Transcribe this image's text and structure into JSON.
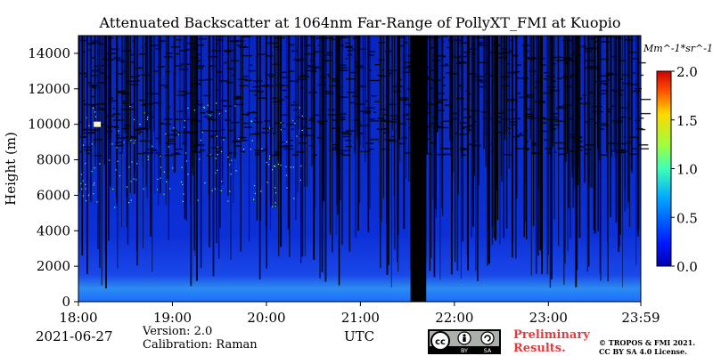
{
  "chart_data": {
    "type": "heatmap",
    "title": "Attenuated Backscatter at 1064nm Far-Range of PollyXT_FMI at Kuopio",
    "ylabel": "Height (m)",
    "xlabel": "UTC",
    "x_ticks": [
      "18:00",
      "19:00",
      "20:00",
      "21:00",
      "22:00",
      "23:00",
      "23:59"
    ],
    "y_ticks": [
      0,
      2000,
      4000,
      6000,
      8000,
      10000,
      12000,
      14000
    ],
    "ylim": [
      0,
      15000
    ],
    "colorbar": {
      "label": "Mm^-1*sr^-1",
      "ticks": [
        "0.0",
        "0.5",
        "1.0",
        "1.5",
        "2.0"
      ],
      "range": [
        0,
        2.0
      ],
      "colormap": "jet"
    },
    "data_gap": {
      "start": "21:32",
      "end": "21:42"
    }
  },
  "footer": {
    "date": "2021-06-27",
    "version": "Version: 2.0",
    "calibration": "Calibration: Raman",
    "preliminary_line1": "Preliminary",
    "preliminary_line2": "Results.",
    "copyright_line1": "© TROPOS & FMI 2021.",
    "copyright_line2": "CC BY SA 4.0 License."
  },
  "license_badge": {
    "cc": "cc",
    "by": "BY",
    "sa": "SA"
  },
  "colors": {
    "background_low": "#0a2fd0",
    "background_high": "#000000",
    "gap": "#000000",
    "prelim_text": "#e8393c"
  }
}
